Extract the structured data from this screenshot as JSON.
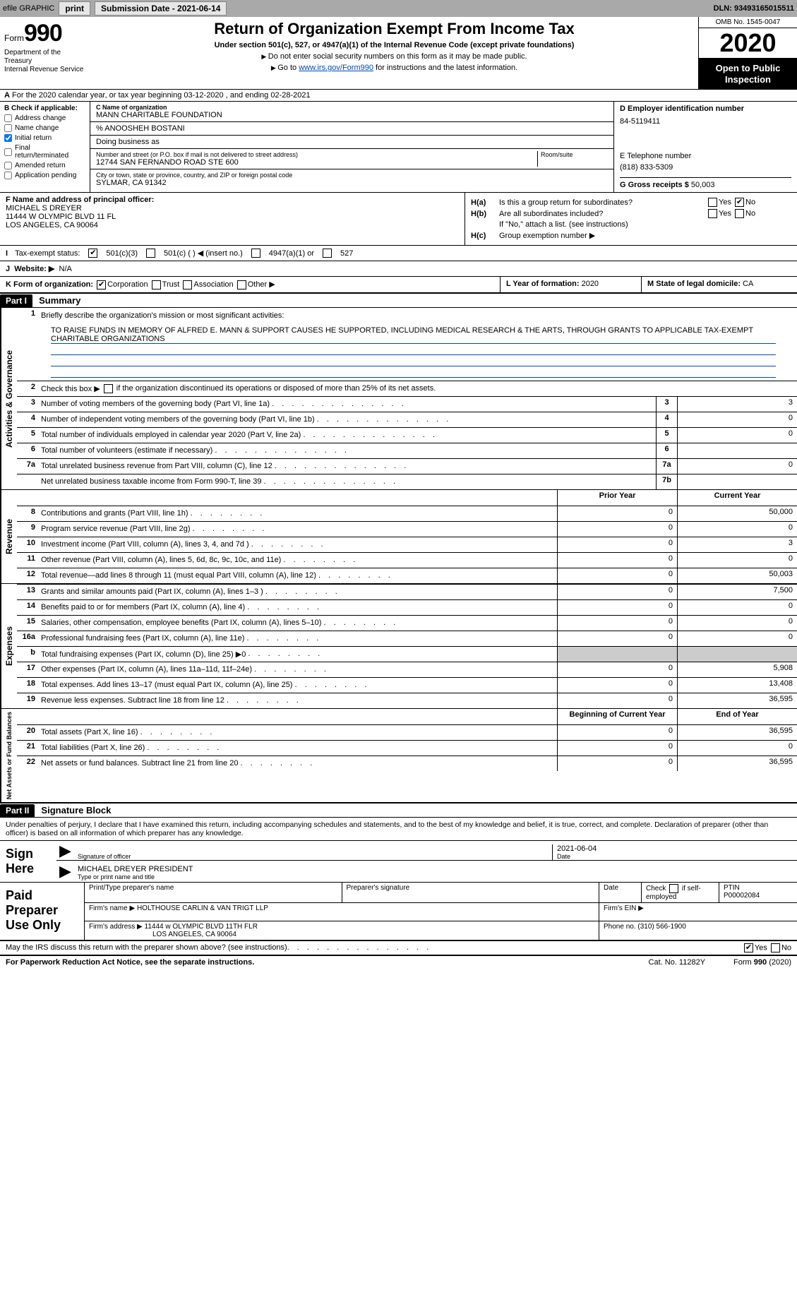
{
  "toolbar": {
    "efile_label": "efile GRAPHIC",
    "print_label": "print",
    "sub_date_label": "Submission Date - 2021-06-14",
    "dln_label": "DLN: 93493165015511"
  },
  "header": {
    "form_small": "Form",
    "form_big": "990",
    "dept": "Department of the Treasury\nInternal Revenue Service",
    "title": "Return of Organization Exempt From Income Tax",
    "sub1": "Under section 501(c), 527, or 4947(a)(1) of the Internal Revenue Code (except private foundations)",
    "sub2": "Do not enter social security numbers on this form as it may be made public.",
    "sub3_a": "Go to ",
    "sub3_link": "www.irs.gov/Form990",
    "sub3_b": " for instructions and the latest information.",
    "omb": "OMB No. 1545-0047",
    "year": "2020",
    "open": "Open to Public Inspection"
  },
  "rowA": "For the 2020 calendar year, or tax year beginning 03-12-2020    , and ending 02-28-2021",
  "boxB": {
    "title": "B Check if applicable:",
    "items": [
      {
        "label": "Address change",
        "checked": false
      },
      {
        "label": "Name change",
        "checked": false
      },
      {
        "label": "Initial return",
        "checked": true
      },
      {
        "label": "Final return/terminated",
        "checked": false
      },
      {
        "label": "Amended return",
        "checked": false
      },
      {
        "label": "Application pending",
        "checked": false
      }
    ]
  },
  "boxC": {
    "lbl_name": "C Name of organization",
    "name": "MANN CHARITABLE FOUNDATION",
    "care_of": "% ANOOSHEH BOSTANI",
    "dba_lbl": "Doing business as",
    "dba": "",
    "addr_lbl": "Number and street (or P.O. box if mail is not delivered to street address)",
    "addr": "12744 SAN FERNANDO ROAD STE 600",
    "room_lbl": "Room/suite",
    "city_lbl": "City or town, state or province, country, and ZIP or foreign postal code",
    "city": "SYLMAR, CA  91342"
  },
  "boxD": {
    "lbl": "D Employer identification number",
    "val": "84-5119411"
  },
  "boxE": {
    "lbl": "E Telephone number",
    "val": "(818) 833-5309"
  },
  "boxG": {
    "lbl": "G Gross receipts $",
    "val": "50,003"
  },
  "boxF": {
    "lbl": "F Name and address of principal officer:",
    "l1": "MICHAEL S DREYER",
    "l2": "11444 W OLYMPIC BLVD 11 FL",
    "l3": "LOS ANGELES, CA  90064"
  },
  "boxH": {
    "a_lbl": "Is this a group return for subordinates?",
    "b_lbl": "Are all subordinates included?",
    "note": "If \"No,\" attach a list. (see instructions)",
    "c_lbl": "Group exemption number ▶"
  },
  "rowI": {
    "lbl": "Tax-exempt status:",
    "opts": [
      "501(c)(3)",
      "501(c) (  ) ◀ (insert no.)",
      "4947(a)(1) or",
      "527"
    ]
  },
  "rowJ": {
    "lbl": "Website: ▶",
    "val": "N/A"
  },
  "rowK": {
    "lbl": "K Form of organization:",
    "opts": [
      "Corporation",
      "Trust",
      "Association",
      "Other ▶"
    ],
    "L_lbl": "L Year of formation:",
    "L_val": "2020",
    "M_lbl": "M State of legal domicile:",
    "M_val": "CA"
  },
  "part1": {
    "hdr": "Part I",
    "title": "Summary",
    "q1": "Briefly describe the organization's mission or most significant activities:",
    "mission": "TO RAISE FUNDS IN MEMORY OF ALFRED E. MANN & SUPPORT CAUSES HE SUPPORTED, INCLUDING MEDICAL RESEARCH & THE ARTS, THROUGH GRANTS TO APPLICABLE TAX-EXEMPT CHARITABLE ORGANIZATIONS",
    "q2_a": "Check this box ▶",
    "q2_b": "if the organization discontinued its operations or disposed of more than 25% of its net assets.",
    "gov_rows": [
      {
        "n": "3",
        "d": "Number of voting members of the governing body (Part VI, line 1a)",
        "c": "3",
        "v": "3"
      },
      {
        "n": "4",
        "d": "Number of independent voting members of the governing body (Part VI, line 1b)",
        "c": "4",
        "v": "0"
      },
      {
        "n": "5",
        "d": "Total number of individuals employed in calendar year 2020 (Part V, line 2a)",
        "c": "5",
        "v": "0"
      },
      {
        "n": "6",
        "d": "Total number of volunteers (estimate if necessary)",
        "c": "6",
        "v": ""
      },
      {
        "n": "7a",
        "d": "Total unrelated business revenue from Part VIII, column (C), line 12",
        "c": "7a",
        "v": "0"
      },
      {
        "n": "",
        "d": "Net unrelated business taxable income from Form 990-T, line 39",
        "c": "7b",
        "v": ""
      }
    ],
    "col_prior": "Prior Year",
    "col_curr": "Current Year",
    "rev_rows": [
      {
        "n": "8",
        "d": "Contributions and grants (Part VIII, line 1h)",
        "p": "0",
        "c": "50,000"
      },
      {
        "n": "9",
        "d": "Program service revenue (Part VIII, line 2g)",
        "p": "0",
        "c": "0"
      },
      {
        "n": "10",
        "d": "Investment income (Part VIII, column (A), lines 3, 4, and 7d )",
        "p": "0",
        "c": "3"
      },
      {
        "n": "11",
        "d": "Other revenue (Part VIII, column (A), lines 5, 6d, 8c, 9c, 10c, and 11e)",
        "p": "0",
        "c": "0"
      },
      {
        "n": "12",
        "d": "Total revenue—add lines 8 through 11 (must equal Part VIII, column (A), line 12)",
        "p": "0",
        "c": "50,003"
      }
    ],
    "exp_rows": [
      {
        "n": "13",
        "d": "Grants and similar amounts paid (Part IX, column (A), lines 1–3 )",
        "p": "0",
        "c": "7,500"
      },
      {
        "n": "14",
        "d": "Benefits paid to or for members (Part IX, column (A), line 4)",
        "p": "0",
        "c": "0"
      },
      {
        "n": "15",
        "d": "Salaries, other compensation, employee benefits (Part IX, column (A), lines 5–10)",
        "p": "0",
        "c": "0"
      },
      {
        "n": "16a",
        "d": "Professional fundraising fees (Part IX, column (A), line 11e)",
        "p": "0",
        "c": "0"
      },
      {
        "n": "b",
        "d": "Total fundraising expenses (Part IX, column (D), line 25) ▶0",
        "p": "SHADE",
        "c": "SHADE"
      },
      {
        "n": "17",
        "d": "Other expenses (Part IX, column (A), lines 11a–11d, 11f–24e)",
        "p": "0",
        "c": "5,908"
      },
      {
        "n": "18",
        "d": "Total expenses. Add lines 13–17 (must equal Part IX, column (A), line 25)",
        "p": "0",
        "c": "13,408"
      },
      {
        "n": "19",
        "d": "Revenue less expenses. Subtract line 18 from line 12",
        "p": "0",
        "c": "36,595"
      }
    ],
    "col_begin": "Beginning of Current Year",
    "col_end": "End of Year",
    "net_rows": [
      {
        "n": "20",
        "d": "Total assets (Part X, line 16)",
        "p": "0",
        "c": "36,595"
      },
      {
        "n": "21",
        "d": "Total liabilities (Part X, line 26)",
        "p": "0",
        "c": "0"
      },
      {
        "n": "22",
        "d": "Net assets or fund balances. Subtract line 21 from line 20",
        "p": "0",
        "c": "36,595"
      }
    ],
    "tab_gov": "Activities & Governance",
    "tab_rev": "Revenue",
    "tab_exp": "Expenses",
    "tab_net": "Net Assets or Fund Balances"
  },
  "part2": {
    "hdr": "Part II",
    "title": "Signature Block",
    "decl": "Under penalties of perjury, I declare that I have examined this return, including accompanying schedules and statements, and to the best of my knowledge and belief, it is true, correct, and complete. Declaration of preparer (other than officer) is based on all information of which preparer has any knowledge.",
    "sign_here": "Sign Here",
    "sig_lbl": "Signature of officer",
    "date_lbl": "Date",
    "date_val": "2021-06-04",
    "name_lbl": "Type or print name and title",
    "name_val": "MICHAEL DREYER  PRESIDENT",
    "paid": "Paid Preparer Use Only",
    "p_name_lbl": "Print/Type preparer's name",
    "p_sig_lbl": "Preparer's signature",
    "p_date_lbl": "Date",
    "p_self_lbl": "Check          if self-employed",
    "p_ptin_lbl": "PTIN",
    "p_ptin": "P00002084",
    "firm_name_lbl": "Firm's name     ▶",
    "firm_name": "HOLTHOUSE CARLIN & VAN TRIGT LLP",
    "firm_ein_lbl": "Firm's EIN ▶",
    "firm_addr_lbl": "Firm's address ▶",
    "firm_addr1": "11444 w OLYMPIC BLVD 11TH FLR",
    "firm_addr2": "LOS ANGELES, CA  90064",
    "phone_lbl": "Phone no.",
    "phone": "(310) 566-1900"
  },
  "footer": {
    "q": "May the IRS discuss this return with the preparer shown above? (see instructions)",
    "pra": "For Paperwork Reduction Act Notice, see the separate instructions.",
    "cat": "Cat. No. 11282Y",
    "form": "Form 990 (2020)"
  }
}
